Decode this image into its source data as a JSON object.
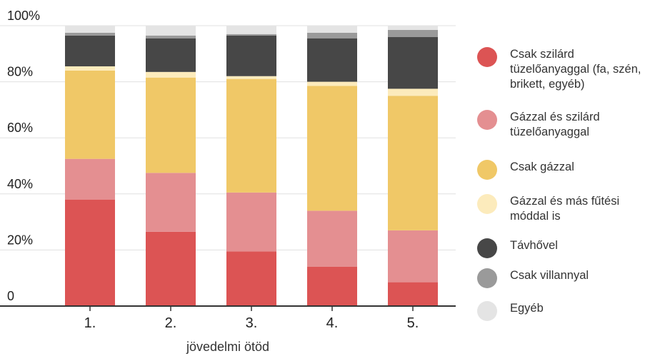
{
  "chart_data": {
    "type": "bar",
    "stacked": true,
    "categories": [
      "1.",
      "2.",
      "3.",
      "4.",
      "5."
    ],
    "xlabel": "jövedelmi ötöd",
    "ylabel": "",
    "yticks": [
      "0",
      "20%",
      "40%",
      "60%",
      "80%",
      "100%"
    ],
    "ylim": [
      0,
      100
    ],
    "legend_position": "right",
    "series": [
      {
        "name": "Csak szilárd tüzelőanyaggal (fa, szén, brikett, egyéb)",
        "color": "#dc5454",
        "values": [
          38,
          26.5,
          19.5,
          14,
          8.5
        ]
      },
      {
        "name": "Gázzal és szilárd tüzelőanyaggal",
        "color": "#e48f91",
        "values": [
          14.5,
          21,
          21,
          20,
          18.5
        ]
      },
      {
        "name": "Csak gázzal",
        "color": "#f0c867",
        "values": [
          31.5,
          34,
          40.5,
          44.5,
          48
        ]
      },
      {
        "name": "Gázzal és más fűtési móddal is",
        "color": "#fcebbc",
        "values": [
          1.5,
          2,
          1,
          1.5,
          2.5
        ]
      },
      {
        "name": "Távhővel",
        "color": "#474747",
        "values": [
          11,
          12,
          14.5,
          15.5,
          18.5
        ]
      },
      {
        "name": "Csak villannyal",
        "color": "#9a9a9a",
        "values": [
          1,
          1,
          0.5,
          2,
          2.5
        ]
      },
      {
        "name": "Egyéb",
        "color": "#e4e4e4",
        "values": [
          2.5,
          3.5,
          3,
          2.5,
          1.5
        ]
      }
    ]
  }
}
